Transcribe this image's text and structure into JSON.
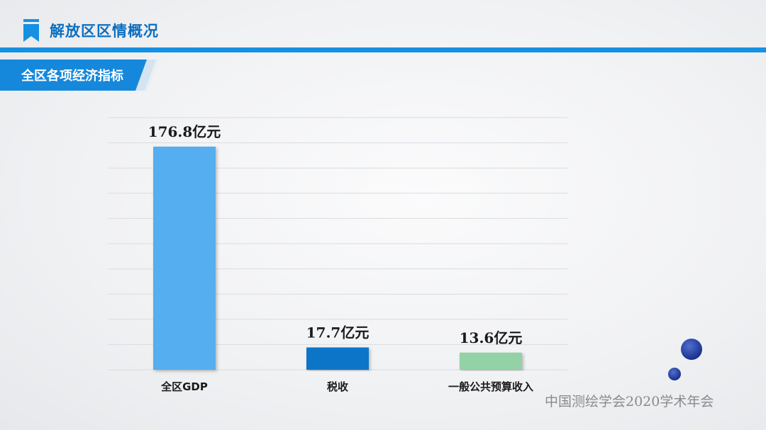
{
  "header": {
    "title": "解放区区情概况",
    "section_label": "全区各项经济指标",
    "accent_color": "#1590e3",
    "title_color": "#0b6fc0",
    "bookmark_icon": "bookmark-icon"
  },
  "chart_data": {
    "type": "bar",
    "categories": [
      "全区GDP",
      "税收",
      "一般公共预算收入"
    ],
    "values": [
      176.8,
      17.7,
      13.6
    ],
    "data_labels": [
      "176.8亿元",
      "17.7亿元",
      "13.6亿元"
    ],
    "unit": "亿元",
    "colors": [
      "#55aeef",
      "#0e74c8",
      "#92d2a6"
    ],
    "grid": true,
    "legend": "none",
    "title": "",
    "xlabel": "",
    "ylabel": ""
  },
  "footer": {
    "text": "中国测绘学会2020学术年会"
  }
}
